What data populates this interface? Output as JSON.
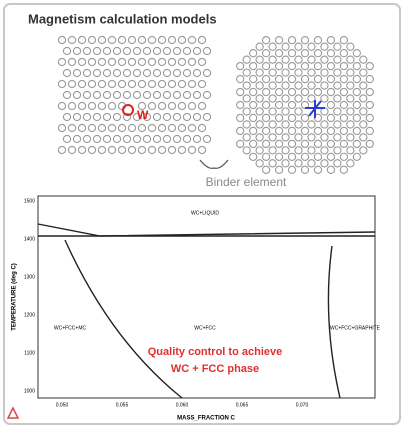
{
  "title": "Magnetism calculation models",
  "lattice_label": "W",
  "binder_label": "Binder element",
  "phase_diagram": {
    "y_label": "TEMPERATURE (deg C)",
    "x_label": "MASS_FRACTION C",
    "y_ticks": [
      "1500",
      "1400",
      "1300",
      "1200",
      "1100",
      "1000"
    ],
    "x_ticks": [
      "0.050",
      "0.055",
      "0.060",
      "0.065",
      "0.070"
    ],
    "regions": [
      "WC+LIQUID",
      "WC+FCC+MC",
      "WC+FCC",
      "WC+FCC+GRAPHITE"
    ],
    "annotation": [
      "Quality control to achieve",
      "WC + FCC phase"
    ]
  }
}
